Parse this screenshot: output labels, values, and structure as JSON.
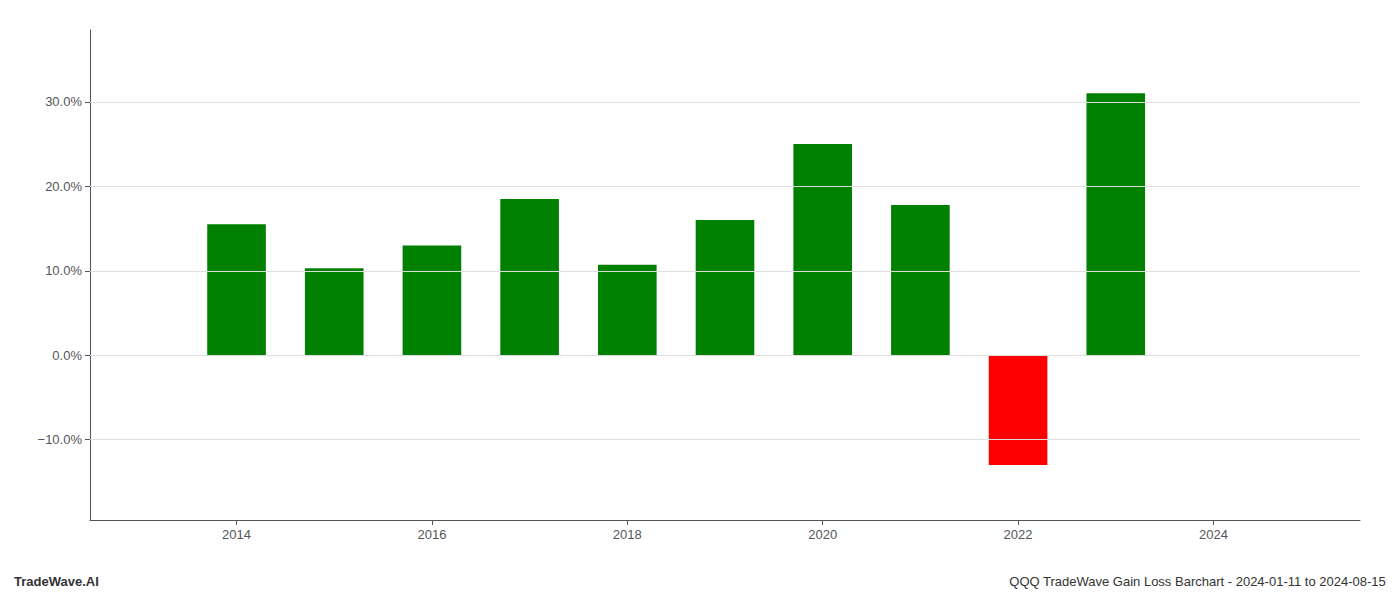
{
  "chart_data": {
    "type": "bar",
    "x": [
      2014,
      2015,
      2016,
      2017,
      2018,
      2019,
      2020,
      2021,
      2022,
      2023
    ],
    "values": [
      0.155,
      0.103,
      0.13,
      0.185,
      0.107,
      0.16,
      0.25,
      0.178,
      -0.13,
      0.31
    ],
    "colors": [
      "#008000",
      "#008000",
      "#008000",
      "#008000",
      "#008000",
      "#008000",
      "#008000",
      "#008000",
      "#ff0000",
      "#008000"
    ],
    "xlim": [
      2012.5,
      2025.5
    ],
    "xticks": [
      2014,
      2016,
      2018,
      2020,
      2022,
      2024
    ],
    "ylim": [
      -0.195,
      0.385
    ],
    "yticks": [
      {
        "value": -0.1,
        "label": "−10.0%"
      },
      {
        "value": 0.0,
        "label": "0.0%"
      },
      {
        "value": 0.1,
        "label": "10.0%"
      },
      {
        "value": 0.2,
        "label": "20.0%"
      },
      {
        "value": 0.3,
        "label": "30.0%"
      }
    ],
    "grid": true,
    "annotations": [
      "TradeWave.AI",
      "QQQ TradeWave Gain Loss Barchart - 2024-01-11 to 2024-08-15"
    ]
  }
}
